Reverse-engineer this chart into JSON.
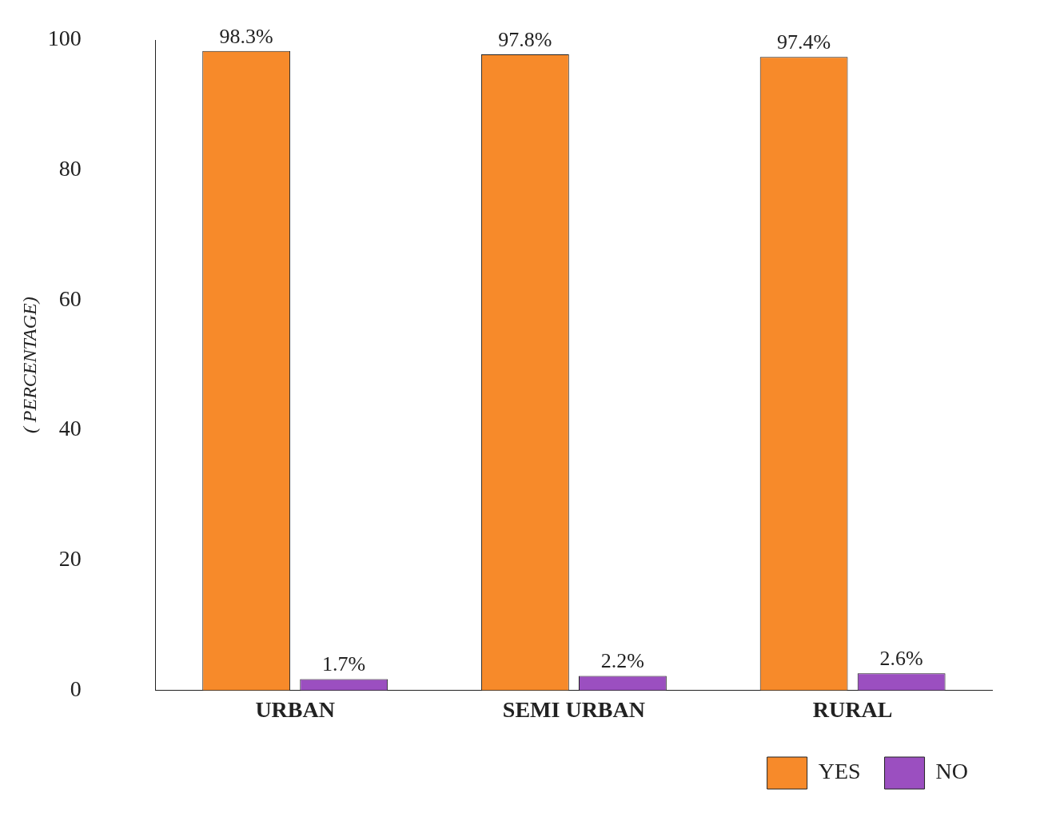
{
  "chart_data": {
    "type": "bar",
    "ylabel": "( PERCENTAGE)",
    "categories": [
      "URBAN",
      "SEMI URBAN",
      "RURAL"
    ],
    "series": [
      {
        "name": "YES",
        "color": "#f78a2a",
        "values": [
          98.3,
          97.8,
          97.4
        ],
        "value_labels": [
          "98.3%",
          "97.8%",
          "97.4%"
        ]
      },
      {
        "name": "NO",
        "color": "#9b4fc0",
        "values": [
          1.7,
          2.2,
          2.6
        ],
        "value_labels": [
          "1.7%",
          "2.2%",
          "2.6%"
        ]
      }
    ],
    "ylim": [
      0,
      100
    ],
    "yticks": [
      0,
      20,
      40,
      60,
      80,
      100
    ],
    "grid": false,
    "legend": "bottom right"
  }
}
